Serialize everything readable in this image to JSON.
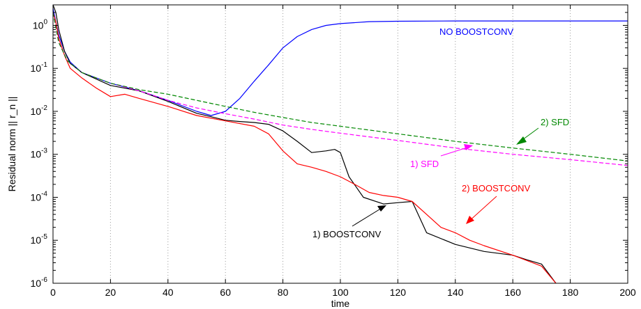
{
  "chart_data": {
    "type": "line",
    "xlabel": "time",
    "ylabel": "Residual norm || r_n ||",
    "y_scale": "log",
    "xlim": [
      0,
      200
    ],
    "ylim": [
      1e-06,
      3
    ],
    "grid": "x-dotted",
    "x_ticks": [
      0,
      20,
      40,
      60,
      80,
      100,
      120,
      140,
      160,
      180,
      200
    ],
    "x_tick_labels": [
      "0",
      "20",
      "40",
      "60",
      "80",
      "100",
      "120",
      "140",
      "160",
      "180",
      "200"
    ],
    "y_ticks": [
      1e-06,
      1e-05,
      0.0001,
      0.001,
      0.01,
      0.1,
      1
    ],
    "y_tick_labels": [
      {
        "base": "10",
        "exp": "-6"
      },
      {
        "base": "10",
        "exp": "-5"
      },
      {
        "base": "10",
        "exp": "-4"
      },
      {
        "base": "10",
        "exp": "-3"
      },
      {
        "base": "10",
        "exp": "-2"
      },
      {
        "base": "10",
        "exp": "-1"
      },
      {
        "base": "10",
        "exp": "0"
      }
    ],
    "series": [
      {
        "name": "NO BOOSTCONV",
        "color": "#0000ff",
        "dash": "solid",
        "x": [
          0,
          1,
          2,
          4,
          6,
          10,
          20,
          30,
          40,
          50,
          55,
          60,
          65,
          70,
          75,
          80,
          85,
          90,
          95,
          100,
          110,
          120,
          140,
          160,
          180,
          200
        ],
        "y": [
          2.5,
          1.2,
          0.6,
          0.25,
          0.14,
          0.08,
          0.045,
          0.03,
          0.018,
          0.01,
          0.008,
          0.01,
          0.02,
          0.05,
          0.12,
          0.3,
          0.55,
          0.8,
          1.0,
          1.1,
          1.22,
          1.25,
          1.27,
          1.27,
          1.27,
          1.27
        ]
      },
      {
        "name": "1) BOOSTCONV",
        "color": "#000000",
        "dash": "solid",
        "x": [
          0,
          1,
          2,
          4,
          6,
          10,
          20,
          30,
          40,
          50,
          55,
          60,
          65,
          70,
          75,
          80,
          85,
          90,
          95,
          98,
          100,
          103,
          108,
          115,
          120,
          125,
          130,
          140,
          150,
          160,
          165,
          170,
          175
        ],
        "y": [
          3.0,
          2.0,
          0.8,
          0.25,
          0.13,
          0.08,
          0.04,
          0.03,
          0.017,
          0.009,
          0.0075,
          0.0062,
          0.0058,
          0.0055,
          0.005,
          0.0035,
          0.002,
          0.0011,
          0.0012,
          0.0013,
          0.0011,
          0.0003,
          0.0001,
          7e-05,
          7.5e-05,
          8e-05,
          1.5e-05,
          8e-06,
          5.5e-06,
          4.5e-06,
          3.5e-06,
          2.8e-06,
          1e-06
        ]
      },
      {
        "name": "2) BOOSTCONV",
        "color": "#ff0000",
        "dash": "solid",
        "x": [
          0,
          1,
          2,
          4,
          6,
          10,
          15,
          20,
          25,
          30,
          40,
          50,
          60,
          70,
          75,
          80,
          85,
          90,
          95,
          100,
          105,
          110,
          115,
          120,
          125,
          130,
          135,
          140,
          145,
          150,
          160,
          170,
          175
        ],
        "y": [
          2.0,
          1.2,
          0.5,
          0.2,
          0.1,
          0.06,
          0.035,
          0.022,
          0.025,
          0.02,
          0.013,
          0.008,
          0.006,
          0.0045,
          0.003,
          0.0012,
          0.0006,
          0.0005,
          0.0004,
          0.0003,
          0.0002,
          0.00013,
          0.00011,
          0.0001,
          8e-05,
          4e-05,
          2e-05,
          1.5e-05,
          1e-05,
          7.5e-06,
          4.5e-06,
          2.5e-06,
          1e-06
        ]
      },
      {
        "name": "1) SFD",
        "color": "#ff00ff",
        "dash": "dashed",
        "x": [
          0,
          2,
          5,
          10,
          20,
          30,
          40,
          50,
          60,
          70,
          80,
          90,
          100,
          120,
          140,
          160,
          180,
          200
        ],
        "y": [
          2.0,
          0.4,
          0.15,
          0.08,
          0.045,
          0.03,
          0.018,
          0.012,
          0.0088,
          0.0066,
          0.0048,
          0.0038,
          0.0031,
          0.0021,
          0.0014,
          0.001,
          0.00075,
          0.00055
        ]
      },
      {
        "name": "2) SFD",
        "color": "#008800",
        "dash": "dashed",
        "x": [
          0,
          2,
          5,
          10,
          20,
          30,
          40,
          50,
          60,
          70,
          80,
          90,
          100,
          120,
          140,
          160,
          180,
          200
        ],
        "y": [
          2.0,
          0.4,
          0.15,
          0.08,
          0.045,
          0.032,
          0.025,
          0.018,
          0.013,
          0.0095,
          0.0072,
          0.0055,
          0.0045,
          0.003,
          0.002,
          0.0014,
          0.001,
          0.0007
        ]
      }
    ],
    "annotations": [
      {
        "text": "NO BOOSTCONV",
        "color": "#0000ff"
      },
      {
        "text": "2) SFD",
        "color": "#008800"
      },
      {
        "text": "1) SFD",
        "color": "#ff00ff"
      },
      {
        "text": "2) BOOSTCONV",
        "color": "#ff0000"
      },
      {
        "text": "1) BOOSTCONV",
        "color": "#000000"
      }
    ]
  }
}
